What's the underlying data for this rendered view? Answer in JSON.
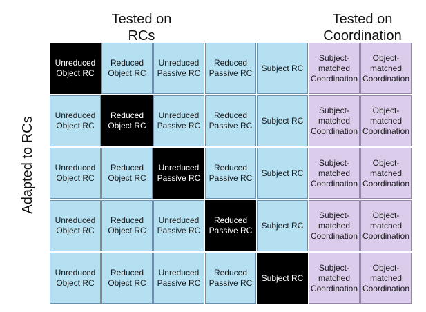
{
  "headers": {
    "tested_rc": "Tested on RCs",
    "tested_coord": "Tested on Coordination",
    "adapted": "Adapted to RCs"
  },
  "rows": [
    {
      "cells": [
        {
          "text": "Unreduced Object RC",
          "kind": "target"
        },
        {
          "text": "Reduced Object RC",
          "kind": "rc"
        },
        {
          "text": "Unreduced Passive RC",
          "kind": "rc"
        },
        {
          "text": "Reduced Passive RC",
          "kind": "rc"
        },
        {
          "text": "Subject RC",
          "kind": "rc"
        },
        {
          "text": "Subject-matched Coordination",
          "kind": "coord"
        },
        {
          "text": "Object-matched Coordination",
          "kind": "coord"
        }
      ]
    },
    {
      "cells": [
        {
          "text": "Unreduced Object RC",
          "kind": "rc"
        },
        {
          "text": "Reduced Object RC",
          "kind": "target"
        },
        {
          "text": "Unreduced Passive RC",
          "kind": "rc"
        },
        {
          "text": "Reduced Passive RC",
          "kind": "rc"
        },
        {
          "text": "Subject RC",
          "kind": "rc"
        },
        {
          "text": "Subject-matched Coordination",
          "kind": "coord"
        },
        {
          "text": "Object-matched Coordination",
          "kind": "coord"
        }
      ]
    },
    {
      "cells": [
        {
          "text": "Unreduced Object RC",
          "kind": "rc"
        },
        {
          "text": "Reduced Object RC",
          "kind": "rc"
        },
        {
          "text": "Unreduced Passive RC",
          "kind": "target"
        },
        {
          "text": "Reduced Passive RC",
          "kind": "rc"
        },
        {
          "text": "Subject RC",
          "kind": "rc"
        },
        {
          "text": "Subject-matched Coordination",
          "kind": "coord"
        },
        {
          "text": "Object-matched Coordination",
          "kind": "coord"
        }
      ]
    },
    {
      "cells": [
        {
          "text": "Unreduced Object RC",
          "kind": "rc"
        },
        {
          "text": "Reduced Object RC",
          "kind": "rc"
        },
        {
          "text": "Unreduced Passive RC",
          "kind": "rc"
        },
        {
          "text": "Reduced Passive RC",
          "kind": "target"
        },
        {
          "text": "Subject RC",
          "kind": "rc"
        },
        {
          "text": "Subject-matched Coordination",
          "kind": "coord"
        },
        {
          "text": "Object-matched Coordination",
          "kind": "coord"
        }
      ]
    },
    {
      "cells": [
        {
          "text": "Unreduced Object RC",
          "kind": "rc"
        },
        {
          "text": "Reduced Object RC",
          "kind": "rc"
        },
        {
          "text": "Unreduced Passive RC",
          "kind": "rc"
        },
        {
          "text": "Reduced Passive RC",
          "kind": "rc"
        },
        {
          "text": "Subject RC",
          "kind": "target"
        },
        {
          "text": "Subject-matched Coordination",
          "kind": "coord"
        },
        {
          "text": "Object-matched Coordination",
          "kind": "coord"
        }
      ]
    }
  ],
  "colors": {
    "rc_cell": "#b5e0f2",
    "coord_cell": "#dcccec",
    "target_cell": "#000000"
  }
}
